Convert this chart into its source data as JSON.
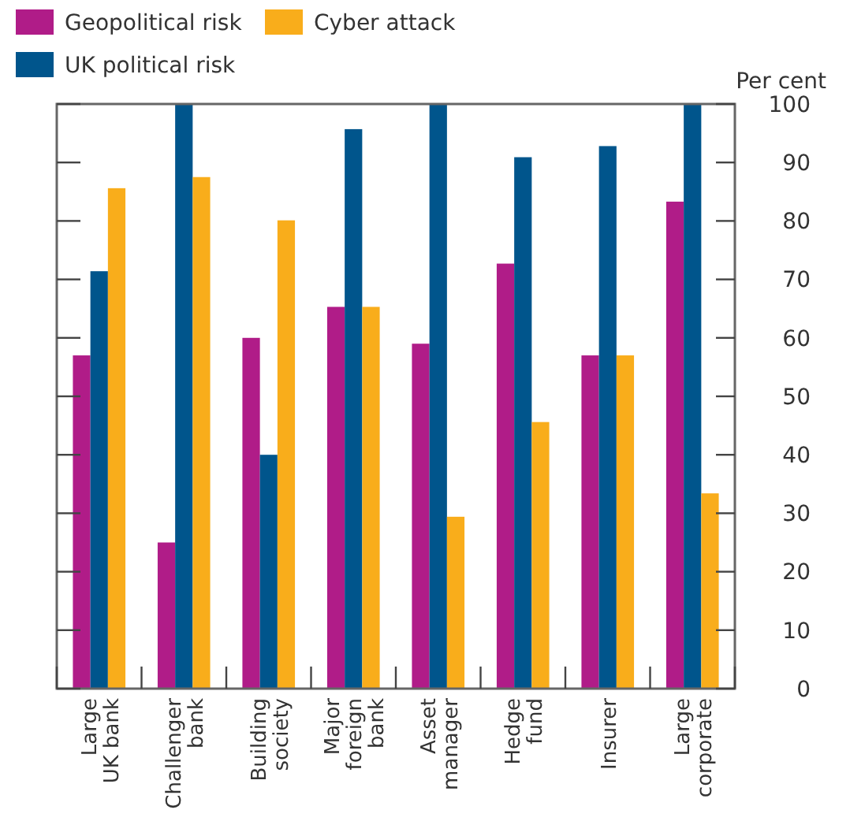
{
  "chart_data": {
    "type": "bar",
    "ylabel": "Per cent",
    "categories": [
      "Large\nUK bank",
      "Challenger\nbank",
      "Building\nsociety",
      "Major\nforeign\nbank",
      "Asset\nmanager",
      "Hedge\nfund",
      "Insurer",
      "Large\ncorporate"
    ],
    "series": [
      {
        "name": "Geopolitical risk",
        "color": "#b01c88",
        "values": [
          57,
          25,
          60,
          65.3,
          59,
          72.7,
          57,
          83.3
        ]
      },
      {
        "name": "UK political risk",
        "color": "#00558c",
        "values": [
          71.4,
          100,
          40,
          95.7,
          100,
          90.9,
          92.8,
          100
        ]
      },
      {
        "name": "Cyber attack",
        "color": "#f9ad1b",
        "values": [
          85.6,
          87.5,
          80.1,
          65.3,
          29.4,
          45.6,
          57,
          33.4
        ]
      }
    ],
    "ylim": [
      0,
      100
    ],
    "yticks": [
      0,
      10,
      20,
      30,
      40,
      50,
      60,
      70,
      80,
      90,
      100
    ],
    "grid": false,
    "legend": "top left"
  }
}
